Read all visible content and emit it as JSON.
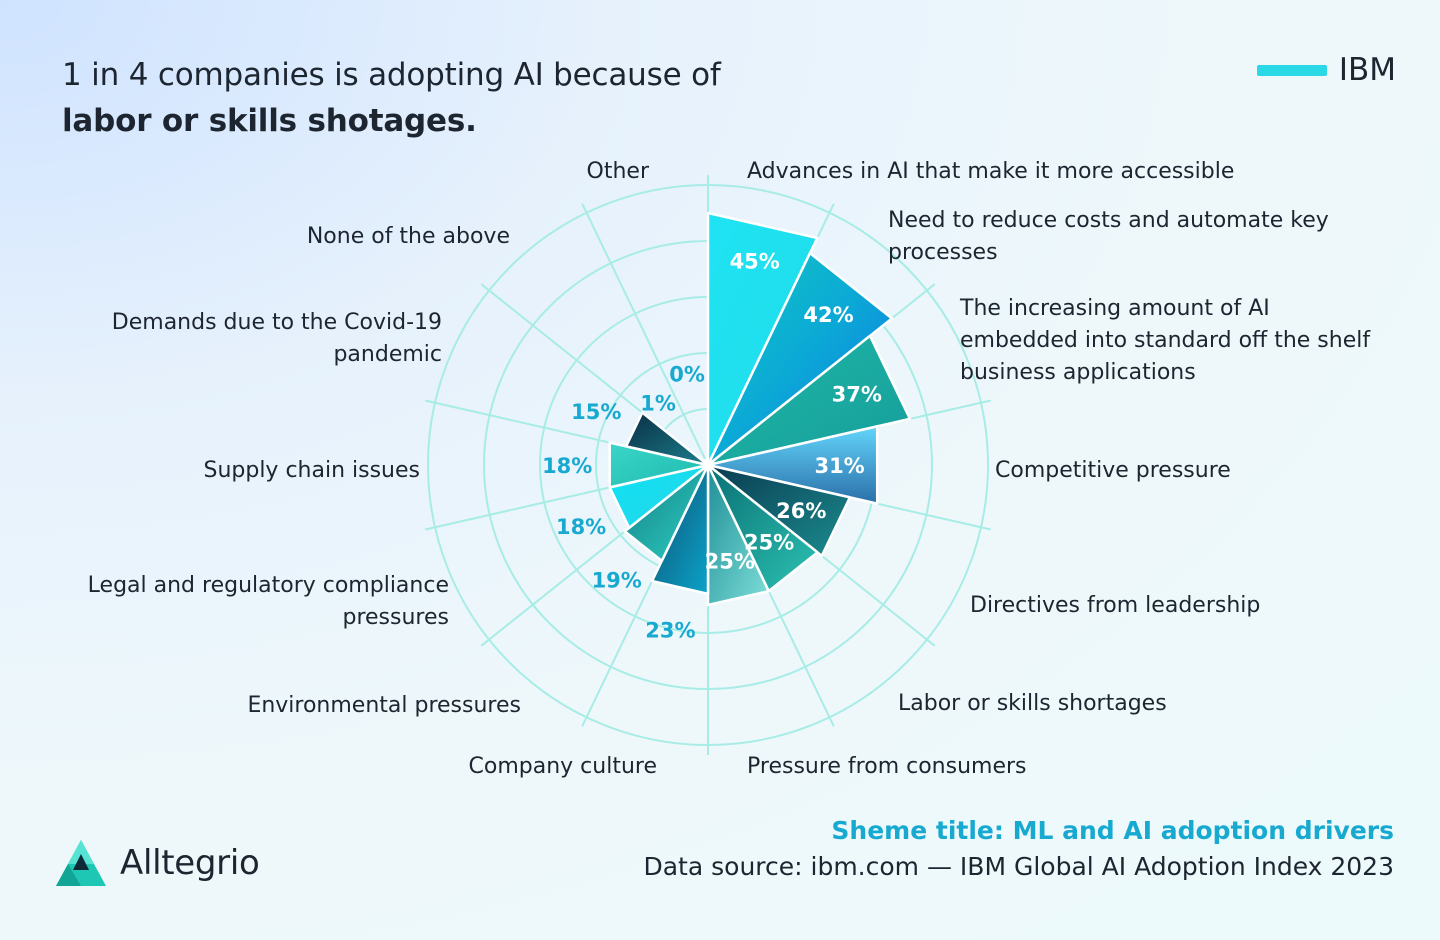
{
  "title": {
    "line1": "1 in 4 companies is adopting AI because of",
    "line2": "labor or skills shotages."
  },
  "legend": {
    "label": "IBM",
    "color": "#2bd9e6"
  },
  "footer": {
    "scheme_title": "Sheme title: ML and AI adoption drivers",
    "source": "Data source: ibm.com — IBM Global AI Adoption Index 2023"
  },
  "brand": {
    "name": "Alltegrio",
    "icon": "alltegrio-logo-icon"
  },
  "chart_data": {
    "type": "polar-bar",
    "title": "1 in 4 companies is adopting AI because of labor or skills shotages.",
    "series": [
      {
        "name": "IBM"
      }
    ],
    "categories": [
      "Advances in AI that make it more accessible",
      "Need to reduce costs and automate key processes",
      "The increasing amount of AI embedded into standard off the shelf business applications",
      "Competitive pressure",
      "Directives from leadership",
      "Labor or skills shortages",
      "Pressure from consumers",
      "Company culture",
      "Environmental pressures",
      "Legal and regulatory compliance pressures",
      "Supply chain issues",
      "Demands due to the Covid-19 pandemic",
      "None of the above",
      "Other"
    ],
    "label_lines": [
      [
        "Advances in AI that make it more accessible"
      ],
      [
        "Need to reduce costs and automate key",
        "processes"
      ],
      [
        "The increasing amount of AI",
        "embedded into standard off the shelf",
        "business applications"
      ],
      [
        "Competitive pressure"
      ],
      [
        "Directives from leadership"
      ],
      [
        "Labor or skills shortages"
      ],
      [
        "Pressure from consumers"
      ],
      [
        "Company culture"
      ],
      [
        "Environmental pressures"
      ],
      [
        "Legal and regulatory compliance",
        "pressures"
      ],
      [
        "Supply chain issues"
      ],
      [
        "Demands due to the Covid-19",
        "pandemic"
      ],
      [
        "None of the above"
      ],
      [
        "Other"
      ]
    ],
    "values": [
      45,
      42,
      37,
      31,
      26,
      25,
      25,
      23,
      19,
      18,
      18,
      15,
      1,
      0
    ],
    "value_labels": [
      "45%",
      "42%",
      "37%",
      "31%",
      "26%",
      "25%",
      "25%",
      "23%",
      "19%",
      "18%",
      "18%",
      "15%",
      "1%",
      "0%"
    ],
    "unit": "%",
    "rmax": 50,
    "grid": true,
    "legend_position": "top-right",
    "colors": {
      "grid": "#a8ece6",
      "label_inside": "#ffffff",
      "label_outside": "#18a9d1"
    }
  }
}
